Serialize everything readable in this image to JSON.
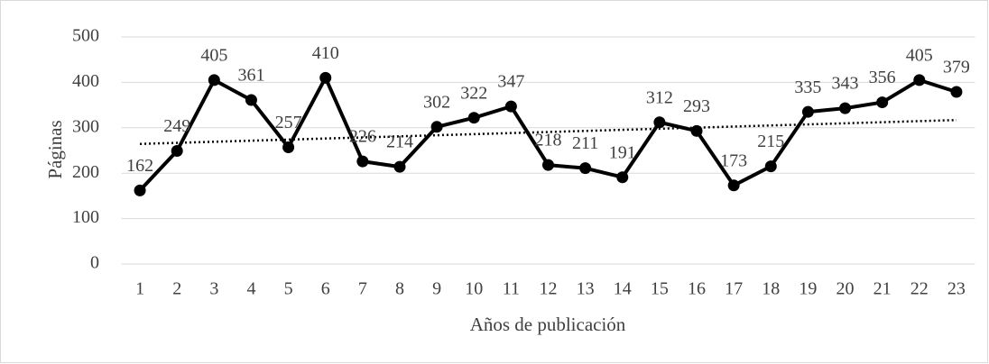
{
  "chart_data": {
    "type": "line",
    "xlabel": "Años de publicación",
    "ylabel": "Páginas",
    "categories": [
      "1",
      "2",
      "3",
      "4",
      "5",
      "6",
      "7",
      "8",
      "9",
      "10",
      "11",
      "12",
      "13",
      "14",
      "15",
      "16",
      "17",
      "18",
      "19",
      "20",
      "21",
      "22",
      "23"
    ],
    "values": [
      162,
      249,
      405,
      361,
      257,
      410,
      226,
      214,
      302,
      322,
      347,
      218,
      211,
      191,
      312,
      293,
      173,
      215,
      335,
      343,
      356,
      405,
      379
    ],
    "color": "#000000",
    "ylim": [
      0,
      500
    ],
    "yticks": [
      0,
      100,
      200,
      300,
      400,
      500
    ],
    "grid": true,
    "trendline": "linear",
    "data_labels": true
  }
}
